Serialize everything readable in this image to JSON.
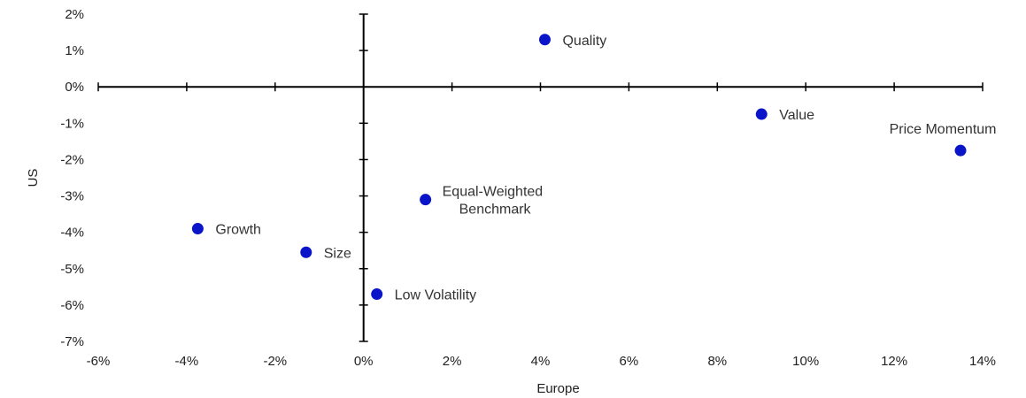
{
  "chart_data": {
    "type": "scatter",
    "title": "",
    "xlabel": "Europe",
    "ylabel": "US",
    "xlim": [
      -6,
      14
    ],
    "ylim": [
      -7,
      2
    ],
    "x_ticks": [
      -6,
      -4,
      -2,
      0,
      2,
      4,
      6,
      8,
      10,
      12,
      14
    ],
    "x_tick_labels": [
      "-6%",
      "-4%",
      "-2%",
      "0%",
      "2%",
      "4%",
      "6%",
      "8%",
      "10%",
      "12%",
      "14%"
    ],
    "y_ticks": [
      2,
      1,
      0,
      -1,
      -2,
      -3,
      -4,
      -5,
      -6,
      -7
    ],
    "y_tick_labels": [
      "2%",
      "1%",
      "0%",
      "-1%",
      "-2%",
      "-3%",
      "-4%",
      "-5%",
      "-6%",
      "-7%"
    ],
    "grid": false,
    "marker_color": "#0a14c8",
    "points": [
      {
        "label": [
          "Quality"
        ],
        "x": 4.1,
        "y": 1.3,
        "label_pos": "right"
      },
      {
        "label": [
          "Value"
        ],
        "x": 9.0,
        "y": -0.75,
        "label_pos": "right"
      },
      {
        "label": [
          "Price Momentum"
        ],
        "x": 13.5,
        "y": -1.75,
        "label_pos": "above"
      },
      {
        "label": [
          "Equal-Weighted",
          "Benchmark"
        ],
        "x": 1.4,
        "y": -3.1,
        "label_pos": "right"
      },
      {
        "label": [
          "Growth"
        ],
        "x": -3.75,
        "y": -3.9,
        "label_pos": "right"
      },
      {
        "label": [
          "Size"
        ],
        "x": -1.3,
        "y": -4.55,
        "label_pos": "right"
      },
      {
        "label": [
          "Low Volatility"
        ],
        "x": 0.3,
        "y": -5.7,
        "label_pos": "right"
      }
    ]
  }
}
